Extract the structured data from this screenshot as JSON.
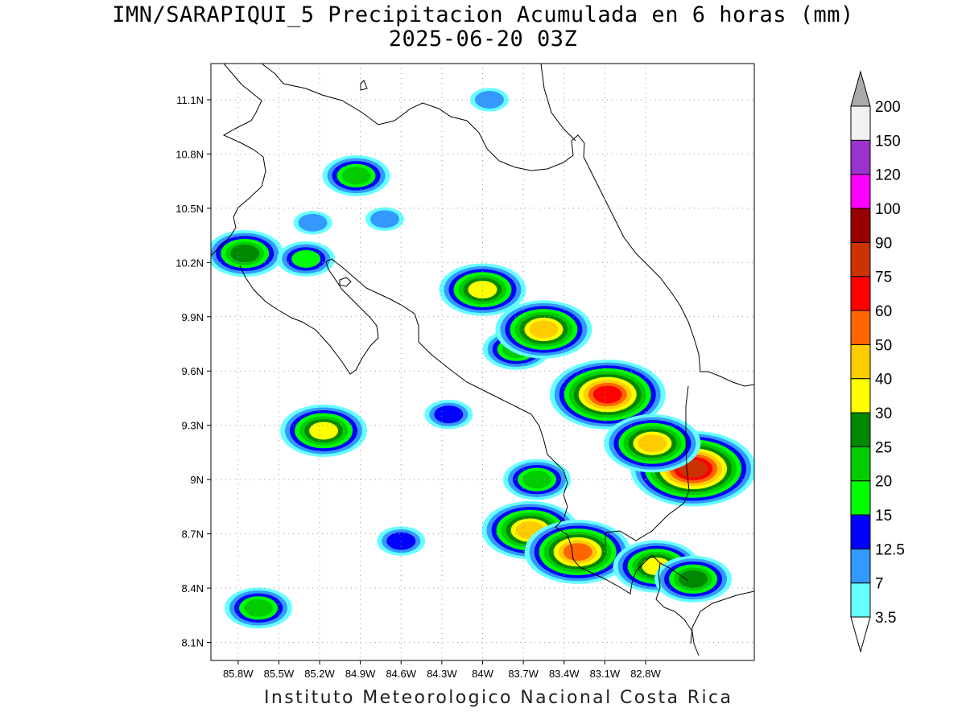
{
  "title": "IMN/SARAPIQUI_5 Precipitacion Acumulada en 6 horas (mm)",
  "subtitle": "2025-06-20 03Z",
  "footer": "Instituto Meteorologico Nacional Costa Rica",
  "map": {
    "lon_range": [
      -86.0,
      -82.0
    ],
    "lat_range": [
      8.0,
      11.3
    ],
    "grid": "dotted",
    "lat_ticks": [
      {
        "value": 11.1,
        "label": "11.1N"
      },
      {
        "value": 10.8,
        "label": "10.8N"
      },
      {
        "value": 10.5,
        "label": "10.5N"
      },
      {
        "value": 10.2,
        "label": "10.2N"
      },
      {
        "value": 9.9,
        "label": "9.9N"
      },
      {
        "value": 9.6,
        "label": "9.6N"
      },
      {
        "value": 9.3,
        "label": "9.3N"
      },
      {
        "value": 9.0,
        "label": "9N"
      },
      {
        "value": 8.7,
        "label": "8.7N"
      },
      {
        "value": 8.4,
        "label": "8.4N"
      },
      {
        "value": 8.1,
        "label": "8.1N"
      }
    ],
    "lon_ticks": [
      {
        "value": -85.8,
        "label": "85.8W"
      },
      {
        "value": -85.5,
        "label": "85.5W"
      },
      {
        "value": -85.2,
        "label": "85.2W"
      },
      {
        "value": -84.9,
        "label": "84.9W"
      },
      {
        "value": -84.6,
        "label": "84.6W"
      },
      {
        "value": -84.3,
        "label": "84.3W"
      },
      {
        "value": -84.0,
        "label": "84W"
      },
      {
        "value": -83.7,
        "label": "83.7W"
      },
      {
        "value": -83.4,
        "label": "83.4W"
      },
      {
        "value": -83.1,
        "label": "83.1W"
      },
      {
        "value": -82.8,
        "label": "82.8W"
      }
    ]
  },
  "colorbar": {
    "levels": [
      {
        "label": "3.5",
        "color": "#66ffff"
      },
      {
        "label": "7",
        "color": "#3399ff"
      },
      {
        "label": "12.5",
        "color": "#0000ff"
      },
      {
        "label": "15",
        "color": "#00ff00"
      },
      {
        "label": "20",
        "color": "#00cc00"
      },
      {
        "label": "25",
        "color": "#008800"
      },
      {
        "label": "30",
        "color": "#ffff00"
      },
      {
        "label": "40",
        "color": "#ffcc00"
      },
      {
        "label": "50",
        "color": "#ff6600"
      },
      {
        "label": "60",
        "color": "#ff0000"
      },
      {
        "label": "75",
        "color": "#cc3300"
      },
      {
        "label": "90",
        "color": "#990000"
      },
      {
        "label": "100",
        "color": "#ff00ff"
      },
      {
        "label": "120",
        "color": "#9933cc"
      },
      {
        "label": "150",
        "color": "#f2f2f2"
      },
      {
        "label": "200",
        "color": "#aaaaaa"
      }
    ],
    "band_colors": [
      "#66ffff",
      "#3399ff",
      "#0000ff",
      "#00ff00",
      "#00cc00",
      "#008800",
      "#ffff00",
      "#ffcc00",
      "#ff6600",
      "#ff0000",
      "#cc3300",
      "#990000",
      "#ff00ff",
      "#9933cc",
      "#f2f2f2"
    ],
    "under_color": "#ffffff",
    "over_color": "#aaaaaa"
  },
  "precip_cells": [
    {
      "lon": -85.75,
      "lat": 10.25,
      "level": 5
    },
    {
      "lon": -85.3,
      "lat": 10.22,
      "level": 3
    },
    {
      "lon": -85.25,
      "lat": 10.42,
      "level": 1
    },
    {
      "lon": -84.93,
      "lat": 10.68,
      "level": 4
    },
    {
      "lon": -84.72,
      "lat": 10.44,
      "level": 1
    },
    {
      "lon": -84.0,
      "lat": 10.05,
      "level": 6
    },
    {
      "lon": -83.75,
      "lat": 9.72,
      "level": 4
    },
    {
      "lon": -83.55,
      "lat": 9.83,
      "level": 7
    },
    {
      "lon": -83.08,
      "lat": 9.47,
      "level": 9
    },
    {
      "lon": -82.45,
      "lat": 9.06,
      "level": 10
    },
    {
      "lon": -82.75,
      "lat": 9.2,
      "level": 7
    },
    {
      "lon": -85.17,
      "lat": 9.27,
      "level": 6
    },
    {
      "lon": -85.65,
      "lat": 8.29,
      "level": 4
    },
    {
      "lon": -83.65,
      "lat": 8.72,
      "level": 7
    },
    {
      "lon": -83.3,
      "lat": 8.6,
      "level": 8
    },
    {
      "lon": -82.72,
      "lat": 8.52,
      "level": 6
    },
    {
      "lon": -82.45,
      "lat": 8.45,
      "level": 5
    },
    {
      "lon": -83.6,
      "lat": 9.0,
      "level": 4
    },
    {
      "lon": -83.95,
      "lat": 11.1,
      "level": 1
    },
    {
      "lon": -84.25,
      "lat": 9.36,
      "level": 2
    },
    {
      "lon": -84.6,
      "lat": 8.66,
      "level": 2
    }
  ]
}
